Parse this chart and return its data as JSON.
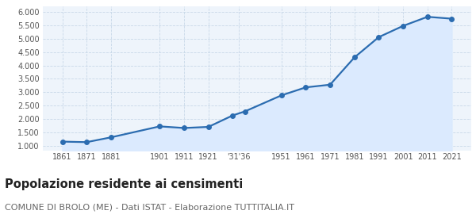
{
  "years": [
    1861,
    1871,
    1881,
    1901,
    1911,
    1921,
    1931,
    1936,
    1951,
    1961,
    1971,
    1981,
    1991,
    2001,
    2011,
    2021
  ],
  "population": [
    1150,
    1130,
    1310,
    1720,
    1660,
    1700,
    2130,
    2280,
    2880,
    3180,
    3280,
    4300,
    5060,
    5480,
    5820,
    5750
  ],
  "line_color": "#2b6cb0",
  "fill_color": "#dbeafe",
  "marker_color": "#2b6cb0",
  "background_color": "#eef4fb",
  "grid_color": "#c8d8e8",
  "title": "Popolazione residente ai censimenti",
  "subtitle": "COMUNE DI BROLO (ME) - Dati ISTAT - Elaborazione TUTTITALIA.IT",
  "ylim": [
    800,
    6200
  ],
  "yticks": [
    1000,
    1500,
    2000,
    2500,
    3000,
    3500,
    4000,
    4500,
    5000,
    5500,
    6000
  ],
  "title_fontsize": 10.5,
  "subtitle_fontsize": 8.0
}
